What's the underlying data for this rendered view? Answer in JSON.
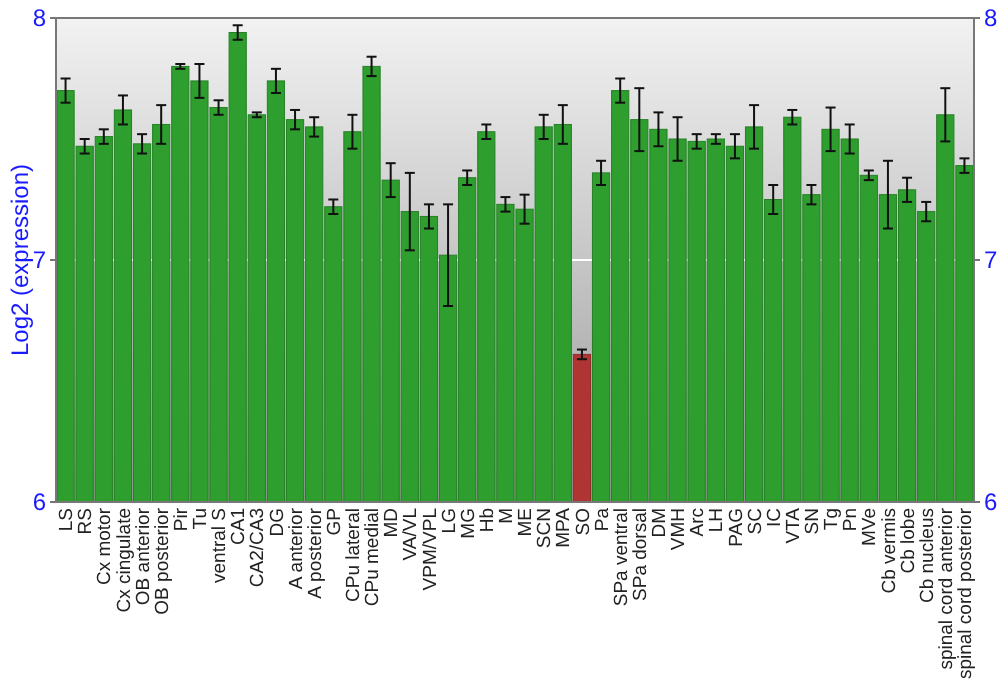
{
  "chart_data": {
    "type": "bar",
    "ylabel": "Log2 (expression)",
    "categories": [
      "LS",
      "RS",
      "Cx motor",
      "Cx cingulate",
      "OB anterior",
      "OB posterior",
      "Pir",
      "Tu",
      "ventral S",
      "CA1",
      "CA2/CA3",
      "DG",
      "A anterior",
      "A posterior",
      "GP",
      "CPu lateral",
      "CPu medial",
      "MD",
      "VA/VL",
      "VPM/VPL",
      "LG",
      "MG",
      "Hb",
      "M",
      "ME",
      "SCN",
      "MPA",
      "SO",
      "Pa",
      "SPa ventral",
      "SPa dorsal",
      "DM",
      "VMH",
      "Arc",
      "LH",
      "PAG",
      "SC",
      "IC",
      "VTA",
      "SN",
      "Tg",
      "Pn",
      "MVe",
      "Cb vermis",
      "Cb lobe",
      "Cb nucleus",
      "spinal cord anterior",
      "spinal cord posterior"
    ],
    "values": [
      7.7,
      7.47,
      7.51,
      7.62,
      7.48,
      7.56,
      7.8,
      7.74,
      7.63,
      7.94,
      7.6,
      7.74,
      7.58,
      7.55,
      7.22,
      7.53,
      7.8,
      7.33,
      7.2,
      7.18,
      7.02,
      7.34,
      7.53,
      7.23,
      7.21,
      7.55,
      7.56,
      6.61,
      7.36,
      7.7,
      7.58,
      7.54,
      7.5,
      7.49,
      7.5,
      7.47,
      7.55,
      7.25,
      7.59,
      7.27,
      7.54,
      7.5,
      7.35,
      7.27,
      7.29,
      7.2,
      7.6,
      7.39
    ],
    "errors": [
      0.05,
      0.03,
      0.03,
      0.06,
      0.04,
      0.08,
      0.01,
      0.07,
      0.03,
      0.03,
      0.01,
      0.05,
      0.04,
      0.04,
      0.03,
      0.07,
      0.04,
      0.07,
      0.16,
      0.05,
      0.21,
      0.03,
      0.03,
      0.03,
      0.06,
      0.05,
      0.08,
      0.02,
      0.05,
      0.05,
      0.13,
      0.07,
      0.09,
      0.03,
      0.02,
      0.05,
      0.09,
      0.06,
      0.03,
      0.04,
      0.09,
      0.06,
      0.02,
      0.14,
      0.05,
      0.04,
      0.11,
      0.03
    ],
    "colors": [
      "#2e9e2e",
      "#2e9e2e",
      "#2e9e2e",
      "#2e9e2e",
      "#2e9e2e",
      "#2e9e2e",
      "#2e9e2e",
      "#2e9e2e",
      "#2e9e2e",
      "#2e9e2e",
      "#2e9e2e",
      "#2e9e2e",
      "#2e9e2e",
      "#2e9e2e",
      "#2e9e2e",
      "#2e9e2e",
      "#2e9e2e",
      "#2e9e2e",
      "#2e9e2e",
      "#2e9e2e",
      "#2e9e2e",
      "#2e9e2e",
      "#2e9e2e",
      "#2e9e2e",
      "#2e9e2e",
      "#2e9e2e",
      "#2e9e2e",
      "#b03434",
      "#2e9e2e",
      "#2e9e2e",
      "#2e9e2e",
      "#2e9e2e",
      "#2e9e2e",
      "#2e9e2e",
      "#2e9e2e",
      "#2e9e2e",
      "#2e9e2e",
      "#2e9e2e",
      "#2e9e2e",
      "#2e9e2e",
      "#2e9e2e",
      "#2e9e2e",
      "#2e9e2e",
      "#2e9e2e",
      "#2e9e2e",
      "#2e9e2e",
      "#2e9e2e",
      "#2e9e2e"
    ],
    "ylim": [
      6,
      8
    ],
    "yticks": [
      6,
      7,
      8
    ],
    "y2lim": [
      6,
      8
    ],
    "y2ticks": [
      6,
      7,
      8
    ],
    "grid": "y"
  }
}
